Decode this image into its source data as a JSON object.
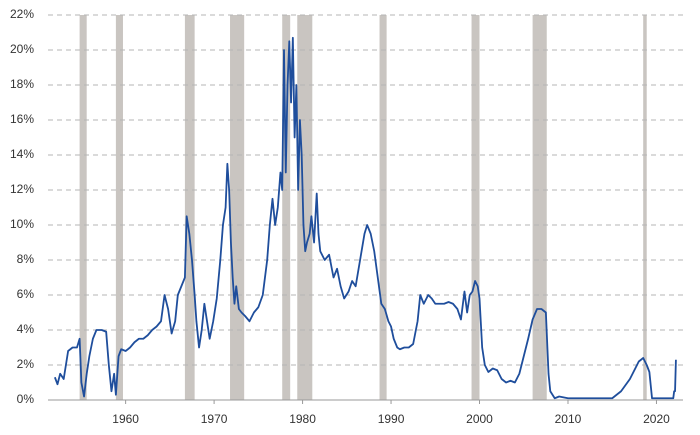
{
  "chart_data": {
    "type": "line",
    "color": "#1f4e9c",
    "band_color": "#c9c5c1",
    "grid": true,
    "xlim": [
      1951,
      2023
    ],
    "xticks": [
      1960,
      1970,
      1980,
      1990,
      2000,
      2010,
      2020
    ],
    "ylim": [
      0,
      22
    ],
    "yticks": [
      {
        "value": 0,
        "label": "0%"
      },
      {
        "value": 2,
        "label": "2%"
      },
      {
        "value": 4,
        "label": "4%"
      },
      {
        "value": 6,
        "label": "6%"
      },
      {
        "value": 8,
        "label": "8%"
      },
      {
        "value": 10,
        "label": "10%"
      },
      {
        "value": 12,
        "label": "12%"
      },
      {
        "value": 14,
        "label": "14%"
      },
      {
        "value": 16,
        "label": "16%"
      },
      {
        "value": 18,
        "label": "18%"
      },
      {
        "value": 20,
        "label": "20%"
      },
      {
        "value": 22,
        "label": "22%"
      }
    ],
    "shaded_periods": [
      [
        1954.8,
        1955.6
      ],
      [
        1958.9,
        1959.7
      ],
      [
        1966.7,
        1967.8
      ],
      [
        1971.8,
        1973.4
      ],
      [
        1977.7,
        1978.6
      ],
      [
        1979.4,
        1981.1
      ],
      [
        1988.7,
        1989.5
      ],
      [
        1999.1,
        2000.0
      ],
      [
        2006.0,
        2007.6
      ],
      [
        2018.5,
        2018.9
      ]
    ],
    "x": [
      1952,
      1952.3,
      1952.6,
      1953,
      1953.5,
      1954,
      1954.5,
      1954.8,
      1955,
      1955.3,
      1955.6,
      1955.9,
      1956.3,
      1956.7,
      1957.3,
      1957.8,
      1958.1,
      1958.4,
      1958.7,
      1958.9,
      1959.2,
      1959.5,
      1960,
      1960.5,
      1961,
      1961.5,
      1962,
      1962.5,
      1963,
      1963.5,
      1964,
      1964.4,
      1964.8,
      1965.2,
      1965.6,
      1965.9,
      1966.3,
      1966.7,
      1966.9,
      1967.2,
      1967.5,
      1967.8,
      1968,
      1968.3,
      1968.6,
      1968.9,
      1969.2,
      1969.5,
      1969.9,
      1970.3,
      1970.7,
      1971.0,
      1971.3,
      1971.5,
      1971.7,
      1971.9,
      1972.1,
      1972.3,
      1972.5,
      1972.8,
      1973.1,
      1973.5,
      1974,
      1974.5,
      1975,
      1975.5,
      1976,
      1976.3,
      1976.6,
      1976.9,
      1977.2,
      1977.5,
      1977.7,
      1977.8,
      1977.9,
      1978.1,
      1978.3,
      1978.5,
      1978.7,
      1978.9,
      1979.1,
      1979.3,
      1979.5,
      1979.7,
      1979.9,
      1980.1,
      1980.3,
      1980.5,
      1980.8,
      1981,
      1981.3,
      1981.6,
      1981.8,
      1982,
      1982.5,
      1983,
      1983.5,
      1983.9,
      1984.3,
      1984.7,
      1985.2,
      1985.6,
      1986,
      1986.5,
      1987,
      1987.3,
      1987.7,
      1988.1,
      1988.5,
      1988.9,
      1989.3,
      1989.7,
      1990,
      1990.3,
      1990.7,
      1991,
      1991.5,
      1992,
      1992.5,
      1993,
      1993.3,
      1993.7,
      1994.2,
      1994.6,
      1995,
      1995.5,
      1996,
      1996.5,
      1997,
      1997.5,
      1997.9,
      1998.3,
      1998.6,
      1998.9,
      1999.2,
      1999.5,
      1999.8,
      2000,
      2000.3,
      2000.6,
      2001,
      2001.5,
      2002,
      2002.5,
      2003,
      2003.5,
      2004,
      2004.5,
      2005,
      2005.5,
      2006,
      2006.5,
      2007,
      2007.5,
      2007.8,
      2008,
      2008.5,
      2009,
      2010,
      2011,
      2012,
      2013,
      2014,
      2015,
      2016,
      2017,
      2018,
      2018.5,
      2018.9,
      2019.2,
      2019.5,
      2020,
      2021,
      2021.9,
      2022,
      2022.1,
      2022.2
    ],
    "values": [
      1.3,
      0.9,
      1.5,
      1.2,
      2.8,
      3.0,
      3.0,
      3.5,
      1.0,
      0.2,
      1.5,
      2.5,
      3.5,
      4.0,
      4.0,
      3.9,
      2.0,
      0.5,
      1.5,
      0.3,
      2.5,
      2.9,
      2.8,
      3.0,
      3.3,
      3.5,
      3.5,
      3.7,
      4.0,
      4.2,
      4.5,
      6.0,
      5.2,
      3.8,
      4.5,
      6.0,
      6.5,
      7.0,
      10.5,
      9.5,
      8.0,
      6.0,
      4.5,
      3.0,
      4.0,
      5.5,
      4.5,
      3.5,
      4.5,
      5.8,
      8.0,
      10.0,
      11.0,
      13.5,
      12.0,
      9.0,
      7.0,
      5.5,
      6.5,
      5.2,
      5.0,
      4.8,
      4.5,
      5.0,
      5.3,
      6.0,
      8.0,
      10.0,
      11.5,
      10.0,
      11.0,
      13.0,
      12.0,
      16.0,
      20.0,
      13.0,
      18.0,
      20.5,
      17.0,
      20.7,
      15.0,
      18.0,
      12.0,
      16.0,
      14.0,
      10.0,
      8.5,
      9.0,
      9.5,
      10.5,
      9.0,
      11.8,
      9.5,
      8.5,
      8.0,
      8.3,
      7.0,
      7.5,
      6.5,
      5.8,
      6.2,
      6.8,
      6.5,
      8.0,
      9.5,
      10.0,
      9.5,
      8.5,
      7.0,
      5.5,
      5.2,
      4.5,
      4.2,
      3.5,
      3.0,
      2.9,
      3.0,
      3.0,
      3.2,
      4.5,
      6.0,
      5.5,
      6.0,
      5.8,
      5.5,
      5.5,
      5.5,
      5.6,
      5.5,
      5.2,
      4.6,
      6.2,
      5.0,
      6.0,
      6.2,
      6.8,
      6.5,
      5.8,
      3.0,
      2.0,
      1.6,
      1.8,
      1.7,
      1.2,
      1.0,
      1.1,
      1.0,
      1.5,
      2.5,
      3.5,
      4.6,
      5.2,
      5.2,
      5.0,
      1.5,
      0.5,
      0.1,
      0.2,
      0.1,
      0.1,
      0.1,
      0.1,
      0.1,
      0.1,
      0.5,
      1.2,
      2.2,
      2.4,
      2.0,
      1.6,
      0.1,
      0.1,
      0.1,
      0.1,
      0.5,
      0.5,
      2.3
    ]
  }
}
